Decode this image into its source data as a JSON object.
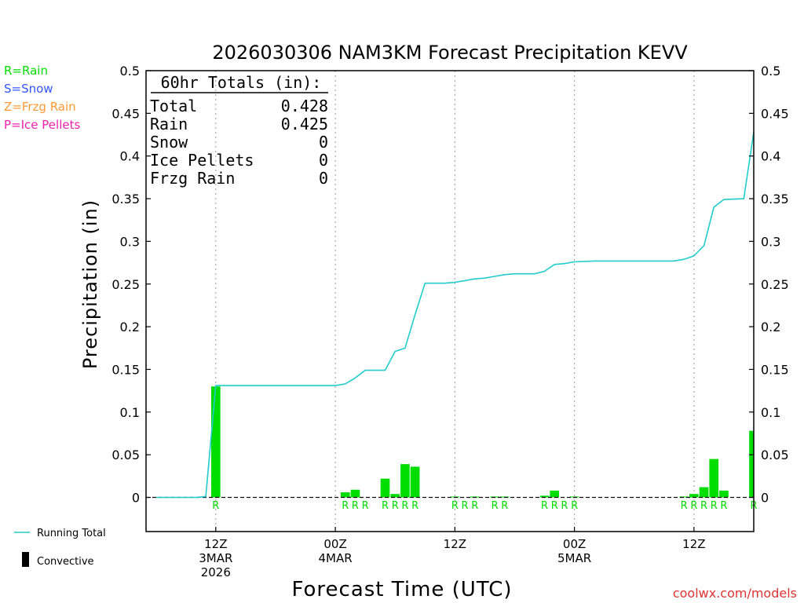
{
  "title": "2026030306 NAM3KM Forecast Precipitation KEVV",
  "legend_left": [
    {
      "text": "R=Rain",
      "color": "#00dd00"
    },
    {
      "text": "S=Snow",
      "color": "#3355ff"
    },
    {
      "text": "Z=Frzg Rain",
      "color": "#ff9933"
    },
    {
      "text": "P=Ice Pellets",
      "color": "#ee22aa"
    }
  ],
  "totals": {
    "heading": "60hr Totals (in):",
    "rows": [
      {
        "label": "Total",
        "value": "0.428"
      },
      {
        "label": "Rain",
        "value": "0.425"
      },
      {
        "label": "Snow",
        "value": "0"
      },
      {
        "label": "Ice Pellets",
        "value": "0"
      },
      {
        "label": "Frzg Rain",
        "value": "0"
      }
    ]
  },
  "legend_bottom": {
    "running_total": "Running Total",
    "convective": "Convective"
  },
  "credit": "coolwx.com/models",
  "colors": {
    "rain_bar": "#00dd00",
    "running_total": "#22cccc",
    "credit": "#dd3333"
  },
  "chart_data": {
    "type": "bar",
    "ylabel": "Precipitation (in)",
    "xlabel": "Forecast Time (UTC)",
    "ylim": [
      -0.04,
      0.5
    ],
    "yticks": [
      "0.5",
      "0.45",
      "0.4",
      "0.35",
      "0.3",
      "0.25",
      "0.2",
      "0.15",
      "0.1",
      "0.05",
      "0"
    ],
    "xlim_hours": [
      -1,
      60
    ],
    "xticks": [
      {
        "hour": 6,
        "lines": [
          "12Z",
          "3MAR",
          "2026"
        ]
      },
      {
        "hour": 18,
        "lines": [
          "00Z",
          "4MAR"
        ]
      },
      {
        "hour": 30,
        "lines": [
          "12Z"
        ]
      },
      {
        "hour": 42,
        "lines": [
          "00Z",
          "5MAR"
        ]
      },
      {
        "hour": 54,
        "lines": [
          "12Z"
        ]
      }
    ],
    "bars": [
      {
        "hour": 6,
        "value": 0.13,
        "ptype": "R"
      },
      {
        "hour": 19,
        "value": 0.006,
        "ptype": "R"
      },
      {
        "hour": 20,
        "value": 0.009,
        "ptype": "R"
      },
      {
        "hour": 21,
        "value": 0.0,
        "ptype": "R"
      },
      {
        "hour": 23,
        "value": 0.022,
        "ptype": "R"
      },
      {
        "hour": 24,
        "value": 0.004,
        "ptype": "R"
      },
      {
        "hour": 25,
        "value": 0.039,
        "ptype": "R"
      },
      {
        "hour": 26,
        "value": 0.036,
        "ptype": "R"
      },
      {
        "hour": 30,
        "value": 0.001,
        "ptype": "R"
      },
      {
        "hour": 31,
        "value": 0.0,
        "ptype": "R"
      },
      {
        "hour": 32,
        "value": 0.001,
        "ptype": "R"
      },
      {
        "hour": 34,
        "value": 0.001,
        "ptype": "R"
      },
      {
        "hour": 35,
        "value": 0.001,
        "ptype": "R"
      },
      {
        "hour": 39,
        "value": 0.002,
        "ptype": "R"
      },
      {
        "hour": 40,
        "value": 0.008,
        "ptype": "R"
      },
      {
        "hour": 41,
        "value": 0.0,
        "ptype": "R"
      },
      {
        "hour": 42,
        "value": 0.001,
        "ptype": "R"
      },
      {
        "hour": 53,
        "value": 0.001,
        "ptype": "R"
      },
      {
        "hour": 54,
        "value": 0.004,
        "ptype": "R"
      },
      {
        "hour": 55,
        "value": 0.012,
        "ptype": "R"
      },
      {
        "hour": 56,
        "value": 0.045,
        "ptype": "R"
      },
      {
        "hour": 57,
        "value": 0.008,
        "ptype": "R"
      },
      {
        "hour": 60,
        "value": 0.078,
        "ptype": "R"
      }
    ],
    "running_total": [
      [
        0,
        0
      ],
      [
        4,
        0
      ],
      [
        5,
        0.001
      ],
      [
        6,
        0.131
      ],
      [
        18,
        0.131
      ],
      [
        19,
        0.133
      ],
      [
        20,
        0.14
      ],
      [
        21,
        0.149
      ],
      [
        22,
        0.149
      ],
      [
        23,
        0.149
      ],
      [
        24,
        0.171
      ],
      [
        25,
        0.175
      ],
      [
        26,
        0.214
      ],
      [
        27,
        0.251
      ],
      [
        29,
        0.251
      ],
      [
        30,
        0.252
      ],
      [
        31,
        0.254
      ],
      [
        32,
        0.256
      ],
      [
        33,
        0.257
      ],
      [
        34,
        0.259
      ],
      [
        35,
        0.261
      ],
      [
        36,
        0.262
      ],
      [
        38,
        0.262
      ],
      [
        39,
        0.265
      ],
      [
        40,
        0.273
      ],
      [
        41,
        0.274
      ],
      [
        42,
        0.276
      ],
      [
        44,
        0.277
      ],
      [
        52,
        0.277
      ],
      [
        53,
        0.279
      ],
      [
        54,
        0.283
      ],
      [
        55,
        0.295
      ],
      [
        56,
        0.34
      ],
      [
        57,
        0.349
      ],
      [
        59,
        0.35
      ],
      [
        60,
        0.428
      ]
    ]
  }
}
